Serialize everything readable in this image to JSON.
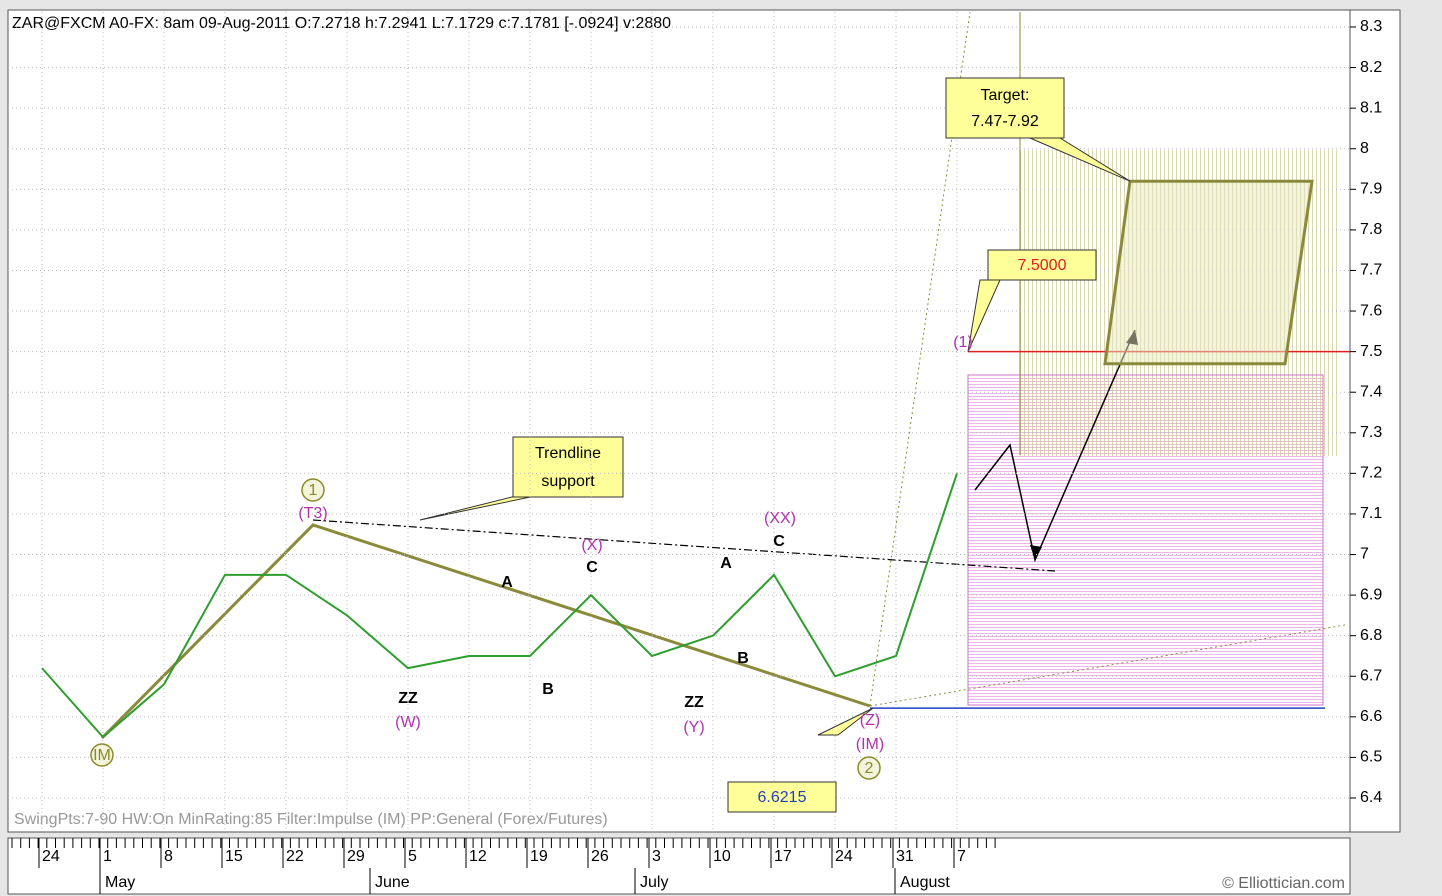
{
  "chart_data": {
    "type": "line",
    "title": "ZAR@FXCM A0-FX:  8am 09-Aug-2011  O:7.2718 h:7.2941 L:7.1729 c:7.1781 [-.0924] v:2880",
    "footer": "SwingPts:7-90 HW:On MinRating:85 Filter:Impulse (IM) PP:General (Forex/Futures)",
    "credit": "© Elliottician.com",
    "categories": [
      "24",
      "1",
      "8",
      "15",
      "22",
      "29",
      "5",
      "12",
      "19",
      "26",
      "3",
      "10",
      "17",
      "24",
      "31",
      "7"
    ],
    "months": [
      "May",
      "June",
      "July",
      "August"
    ],
    "series": [
      {
        "name": "ZAR",
        "color": "#2e9e2e",
        "values": [
          6.72,
          6.55,
          6.68,
          6.95,
          6.95,
          6.85,
          6.72,
          6.75,
          6.75,
          6.9,
          6.75,
          6.8,
          6.95,
          6.7,
          6.75,
          7.2
        ]
      }
    ],
    "ylim": [
      6.35,
      8.35
    ],
    "yticks": [
      6.4,
      6.5,
      6.6,
      6.7,
      6.8,
      6.9,
      7,
      7.1,
      7.2,
      7.3,
      7.4,
      7.5,
      7.6,
      7.7,
      7.8,
      7.9,
      8,
      8.1,
      8.2,
      8.3
    ],
    "grid": true,
    "levels": [
      {
        "value": 7.5,
        "label": "7.5000",
        "color": "#e02020"
      },
      {
        "value": 6.6215,
        "label": "6.6215",
        "color": "#2040c0"
      }
    ],
    "target": {
      "title": "Target:",
      "label": "7.47-7.92",
      "low": 7.47,
      "high": 7.92
    },
    "callout": "Trendline support",
    "callout2": "support",
    "waves": [
      {
        "text": "IM",
        "circled": true,
        "color": "#8a8a2a"
      },
      {
        "text": "1",
        "circled": true,
        "color": "#8a8a2a"
      },
      {
        "text": "(T3)",
        "color": "#b030b0"
      },
      {
        "text": "A",
        "color": "#000000"
      },
      {
        "text": "(X)",
        "color": "#b030b0"
      },
      {
        "text": "C",
        "color": "#000000"
      },
      {
        "text": "ZZ",
        "color": "#000000"
      },
      {
        "text": "(W)",
        "color": "#b030b0"
      },
      {
        "text": "B",
        "color": "#000000"
      },
      {
        "text": "ZZ",
        "color": "#000000"
      },
      {
        "text": "(Y)",
        "color": "#b030b0"
      },
      {
        "text": "A",
        "color": "#000000"
      },
      {
        "text": "B",
        "color": "#000000"
      },
      {
        "text": "(XX)",
        "color": "#b030b0"
      },
      {
        "text": "C",
        "color": "#000000"
      },
      {
        "text": "(Z)",
        "color": "#b030b0"
      },
      {
        "text": "(IM)",
        "color": "#b030b0"
      },
      {
        "text": "2",
        "circled": true,
        "color": "#8a8a2a"
      },
      {
        "text": "(1)",
        "color": "#b030b0"
      }
    ]
  }
}
